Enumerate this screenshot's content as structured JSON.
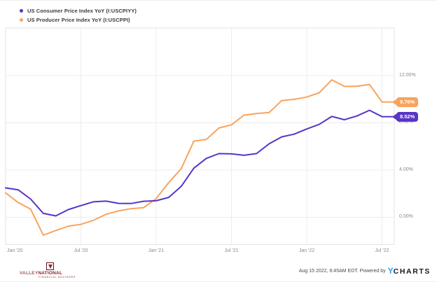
{
  "chart_data": {
    "type": "line",
    "x": [
      "Jan '20",
      "Feb '20",
      "Mar '20",
      "Apr '20",
      "May '20",
      "Jun '20",
      "Jul '20",
      "Aug '20",
      "Sep '20",
      "Oct '20",
      "Nov '20",
      "Dec '20",
      "Jan '21",
      "Feb '21",
      "Mar '21",
      "Apr '21",
      "May '21",
      "Jun '21",
      "Jul '21",
      "Aug '21",
      "Sep '21",
      "Oct '21",
      "Nov '21",
      "Dec '21",
      "Jan '22",
      "Feb '22",
      "Mar '22",
      "Apr '22",
      "May '22",
      "Jun '22",
      "Jul '22"
    ],
    "series": [
      {
        "name": "US Consumer Price Index YoY (I:USCPIYY)",
        "color": "#5834c7",
        "end_label": "8.52%",
        "values": [
          2.49,
          2.33,
          1.54,
          0.33,
          0.12,
          0.65,
          0.99,
          1.31,
          1.37,
          1.18,
          1.17,
          1.36,
          1.4,
          1.68,
          2.62,
          4.16,
          4.99,
          5.39,
          5.37,
          5.25,
          5.39,
          6.22,
          6.81,
          7.04,
          7.48,
          7.87,
          8.54,
          8.26,
          8.58,
          9.06,
          8.52
        ]
      },
      {
        "name": "US Producer Price Index YoY (I:USCPPI)",
        "color": "#f9a35d",
        "end_label": "9.76%",
        "values": [
          2.06,
          1.25,
          0.69,
          -1.52,
          -1.12,
          -0.75,
          -0.6,
          -0.26,
          0.25,
          0.54,
          0.73,
          0.82,
          1.58,
          2.94,
          4.12,
          6.45,
          6.59,
          7.56,
          7.83,
          8.65,
          8.78,
          8.87,
          9.88,
          9.99,
          10.18,
          10.55,
          11.64,
          11.08,
          11.1,
          11.25,
          9.76
        ]
      }
    ],
    "y_ticks": [
      {
        "value": 12,
        "label": "12.00%"
      },
      {
        "value": 8,
        "label": "8.00%"
      },
      {
        "value": 4,
        "label": "4.00%"
      },
      {
        "value": 0,
        "label": "0.00%"
      }
    ],
    "x_ticks": [
      {
        "index": 0,
        "label": "Jan '20"
      },
      {
        "index": 6,
        "label": "Jul '20"
      },
      {
        "index": 12,
        "label": "Jan '21"
      },
      {
        "index": 18,
        "label": "Jul '21"
      },
      {
        "index": 24,
        "label": "Jan '22"
      },
      {
        "index": 30,
        "label": "Jul '22"
      }
    ],
    "ylim": [
      -2.3,
      16.0
    ],
    "grid": true,
    "legend_position": "top-left",
    "grid_color": "#ececec",
    "border_color": "#e3e3e3"
  },
  "footer": {
    "timestamp": "Aug 15 2022, 6:45AM EDT. Powered by",
    "brand_y": "Y",
    "brand_rest": "CHARTS",
    "logo": {
      "line1a": "VALLEY",
      "line1b": "NATIONAL",
      "line2": "FINANCIAL ADVISORS"
    }
  }
}
